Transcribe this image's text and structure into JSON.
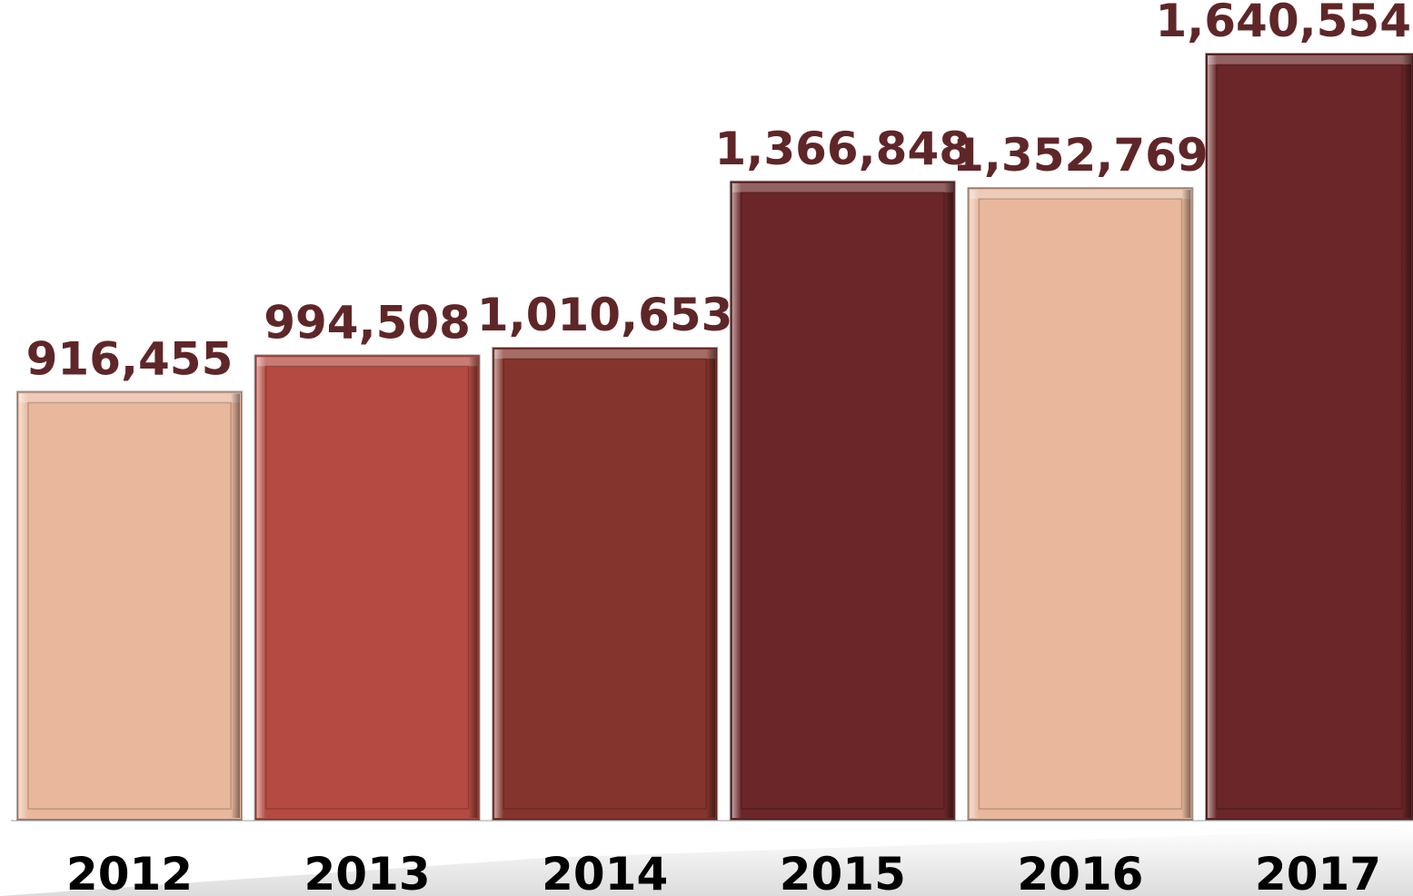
{
  "chart_data": {
    "type": "bar",
    "categories": [
      "2012",
      "2013",
      "2014",
      "2015",
      "2016",
      "2017"
    ],
    "values": [
      916455,
      994508,
      1010653,
      1366848,
      1352769,
      1640554
    ],
    "value_labels": [
      "916,455",
      "994,508",
      "1,010,653",
      "1,366,848",
      "1,352,769",
      "1,640,554"
    ],
    "colors": [
      "#e8b79c",
      "#b44a40",
      "#84342c",
      "#6a2628",
      "#e8b79c",
      "#6a2628"
    ],
    "title": "",
    "xlabel": "",
    "ylabel": "",
    "ylim": [
      0,
      1640554
    ],
    "grid": false,
    "legend": "none"
  }
}
